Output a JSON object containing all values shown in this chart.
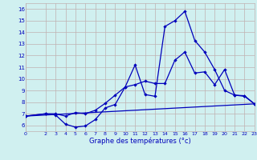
{
  "xlabel": "Graphe des températures (°c)",
  "xlim": [
    0,
    23
  ],
  "ylim": [
    5.5,
    16.5
  ],
  "yticks": [
    6,
    7,
    8,
    9,
    10,
    11,
    12,
    13,
    14,
    15,
    16
  ],
  "xticks": [
    0,
    2,
    3,
    4,
    5,
    6,
    7,
    8,
    9,
    10,
    11,
    12,
    13,
    14,
    15,
    16,
    17,
    18,
    19,
    20,
    21,
    22,
    23
  ],
  "bg_color": "#d0f0f0",
  "grid_color": "#c0b0b0",
  "line_color": "#0000bb",
  "line1_x": [
    0,
    2,
    3,
    4,
    5,
    6,
    7,
    8,
    9,
    10,
    11,
    12,
    13,
    14,
    15,
    16,
    17,
    18,
    19,
    20,
    21,
    22,
    23
  ],
  "line1_y": [
    6.8,
    7.0,
    6.9,
    6.1,
    5.85,
    5.95,
    6.5,
    7.5,
    7.8,
    9.3,
    11.2,
    8.65,
    8.5,
    14.5,
    15.0,
    15.8,
    13.3,
    12.3,
    10.8,
    9.0,
    8.6,
    8.5,
    7.85
  ],
  "line2_x": [
    0,
    2,
    3,
    4,
    5,
    6,
    7,
    8,
    9,
    10,
    11,
    12,
    13,
    14,
    15,
    16,
    17,
    18,
    19,
    20,
    21,
    22,
    23
  ],
  "line2_y": [
    6.8,
    7.0,
    7.0,
    6.8,
    7.1,
    7.0,
    7.3,
    7.9,
    8.6,
    9.3,
    9.5,
    9.8,
    9.6,
    9.6,
    11.6,
    12.3,
    10.5,
    10.6,
    9.5,
    10.8,
    8.6,
    8.55,
    7.85
  ],
  "line3_x": [
    0,
    23
  ],
  "line3_y": [
    6.8,
    7.85
  ]
}
